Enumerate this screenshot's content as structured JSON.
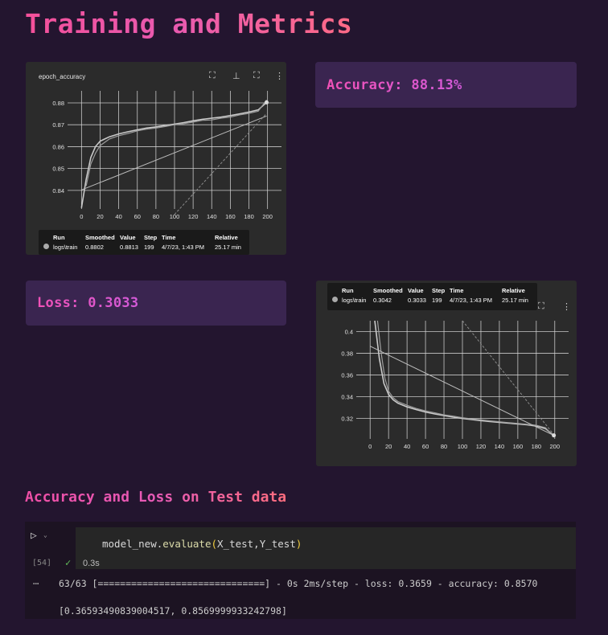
{
  "page": {
    "title": "Training and Metrics",
    "subtitle": "Accuracy and Loss on Test data"
  },
  "metrics": {
    "accuracy": "Accuracy: 88.13%",
    "loss": "Loss: 0.3033"
  },
  "accuracy_chart": {
    "panel_title": "epoch_accuracy",
    "icons": [
      "fit-domain-icon",
      "pin-icon",
      "fullscreen-icon",
      "more-vert-icon"
    ],
    "tooltip": {
      "headers": [
        "Run",
        "Smoothed",
        "Value",
        "Step",
        "Time",
        "Relative"
      ],
      "values": [
        "logs\\train",
        "0.8802",
        "0.8813",
        "199",
        "4/7/23, 1:43 PM",
        "25.17 min"
      ]
    }
  },
  "loss_chart": {
    "icons": [
      "fullscreen-icon",
      "more-vert-icon"
    ],
    "tooltip": {
      "headers": [
        "Run",
        "Smoothed",
        "Value",
        "Step",
        "Time",
        "Relative"
      ],
      "values": [
        "logs\\train",
        "0.3042",
        "0.3033",
        "199",
        "4/7/23, 1:43 PM",
        "25.17 min"
      ]
    }
  },
  "chart_data": [
    {
      "type": "line",
      "title": "epoch_accuracy",
      "x_ticks": [
        0,
        20,
        40,
        60,
        80,
        100,
        120,
        140,
        160,
        180,
        200
      ],
      "y_ticks": [
        0.84,
        0.85,
        0.86,
        0.87,
        0.88
      ],
      "xlim": [
        -15,
        215
      ],
      "ylim": [
        0.8315,
        0.8855
      ],
      "grid": true,
      "series": [
        {
          "x": [
            0,
            5,
            10,
            15,
            20,
            25,
            30,
            40,
            50,
            60,
            70,
            80,
            90,
            100,
            110,
            120,
            130,
            140,
            150,
            160,
            170,
            180,
            190,
            199
          ],
          "y": [
            0.832,
            0.845,
            0.855,
            0.86,
            0.8625,
            0.8635,
            0.8645,
            0.8658,
            0.8668,
            0.8677,
            0.8685,
            0.869,
            0.8697,
            0.8703,
            0.871,
            0.8718,
            0.8725,
            0.873,
            0.8735,
            0.8742,
            0.875,
            0.8758,
            0.8768,
            0.8802
          ]
        },
        {
          "x": [
            5,
            10,
            15,
            20,
            25,
            30,
            40,
            50,
            60,
            70,
            80,
            90,
            100,
            110,
            120,
            130,
            140,
            150,
            160,
            170,
            180,
            190,
            199
          ],
          "y": [
            0.842,
            0.852,
            0.857,
            0.8605,
            0.862,
            0.8635,
            0.865,
            0.866,
            0.8672,
            0.868,
            0.8685,
            0.8692,
            0.87,
            0.8705,
            0.8712,
            0.872,
            0.8722,
            0.873,
            0.8735,
            0.8745,
            0.8752,
            0.8762,
            0.8813
          ]
        },
        {
          "x": [
            0,
            199
          ],
          "y": [
            0.8402,
            0.874
          ]
        },
        {
          "x": [
            100,
            199
          ],
          "y": [
            0.829,
            0.8752
          ]
        }
      ]
    },
    {
      "type": "line",
      "x_ticks": [
        0,
        20,
        40,
        60,
        80,
        100,
        120,
        140,
        160,
        180,
        200
      ],
      "y_ticks": [
        0.32,
        0.34,
        0.36,
        0.38,
        0.4
      ],
      "xlim": [
        -15,
        215
      ],
      "ylim": [
        0.301,
        0.41
      ],
      "grid": true,
      "series": [
        {
          "x": [
            5,
            10,
            15,
            20,
            25,
            30,
            40,
            50,
            60,
            70,
            80,
            90,
            100,
            110,
            120,
            130,
            140,
            150,
            160,
            170,
            180,
            190,
            199
          ],
          "y": [
            0.41,
            0.375,
            0.352,
            0.342,
            0.337,
            0.334,
            0.3305,
            0.328,
            0.3258,
            0.324,
            0.3225,
            0.321,
            0.3198,
            0.3188,
            0.3178,
            0.317,
            0.3162,
            0.3155,
            0.3147,
            0.314,
            0.3128,
            0.3105,
            0.3042
          ]
        },
        {
          "x": [
            8,
            12,
            16,
            20,
            25,
            30,
            40,
            50,
            60,
            70,
            80,
            90,
            100,
            110,
            120,
            130,
            140,
            150,
            160,
            170,
            180,
            190,
            199
          ],
          "y": [
            0.41,
            0.38,
            0.357,
            0.345,
            0.339,
            0.3355,
            0.332,
            0.329,
            0.3268,
            0.325,
            0.3232,
            0.322,
            0.3205,
            0.3195,
            0.3185,
            0.3176,
            0.3168,
            0.316,
            0.3152,
            0.3144,
            0.3135,
            0.3112,
            0.3033
          ]
        },
        {
          "x": [
            0,
            199
          ],
          "y": [
            0.3865,
            0.3042
          ]
        },
        {
          "x": [
            100,
            199
          ],
          "y": [
            0.41,
            0.305
          ]
        }
      ]
    }
  ],
  "cell": {
    "execution_count": "[54]",
    "code_obj": "model_new.",
    "code_fn": "evaluate",
    "code_open": "(",
    "code_args": "X_test,Y_test",
    "code_close": ")",
    "duration": "0.3s",
    "output_line1": "63/63 [==============================] - 0s 2ms/step - loss: 0.3659 - accuracy: 0.8570",
    "output_line2": "[0.36593490839004517, 0.8569999933242798]"
  },
  "colors": {
    "background": "#23152f",
    "metric_box": "#3a2550",
    "panel": "#2b2b2b",
    "accent_pink": "#f4509a",
    "check_green": "#63c05a"
  }
}
